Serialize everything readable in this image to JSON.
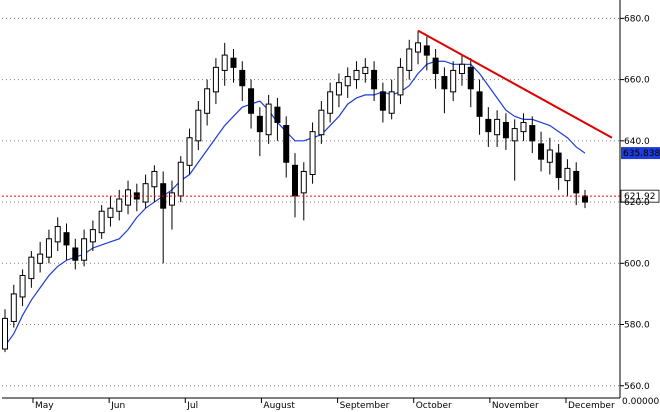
{
  "chart_data": {
    "type": "candlestick",
    "x_axis": {
      "months": [
        "May",
        "Jun",
        "Jul",
        "August",
        "September",
        "October",
        "November",
        "December"
      ]
    },
    "y_axis": {
      "ticks": [
        "560.0",
        "580.0",
        "600.0",
        "620.0",
        "640.0",
        "660.0",
        "680.0"
      ],
      "range": [
        556,
        686
      ],
      "bottom_label": "0.00000"
    },
    "grid": true,
    "price_line": {
      "value": 621.92,
      "label": "621.92",
      "color": "#ff0000",
      "style": "dotted"
    },
    "moving_average": {
      "label": "635.838",
      "color": "#1f3dd6",
      "values": [
        573,
        577,
        583,
        588,
        592,
        596,
        599,
        601,
        602,
        603,
        605,
        606,
        607,
        608,
        611,
        615,
        618,
        620,
        622,
        624,
        627,
        629,
        633,
        637,
        641,
        645,
        648,
        651,
        652,
        653,
        650,
        646,
        643,
        640,
        640,
        641,
        642,
        645,
        648,
        652,
        654,
        655,
        655,
        656,
        655,
        656,
        658,
        662,
        665,
        666,
        666,
        665,
        665,
        665,
        662,
        658,
        654,
        650,
        648,
        647,
        647,
        646,
        645,
        643,
        641,
        638,
        636
      ]
    },
    "trendline": {
      "from_value": 676,
      "to_value": 641,
      "color": "#e00000"
    },
    "candles": [
      [
        572,
        582,
        571,
        585
      ],
      [
        581,
        590,
        579,
        593
      ],
      [
        589,
        596,
        586,
        598
      ],
      [
        595,
        602,
        592,
        604
      ],
      [
        600,
        603,
        597,
        607
      ],
      [
        602,
        608,
        600,
        611
      ],
      [
        607,
        612,
        604,
        615
      ],
      [
        610,
        606,
        601,
        613
      ],
      [
        605,
        601,
        598,
        608
      ],
      [
        601,
        608,
        599,
        611
      ],
      [
        607,
        611,
        604,
        614
      ],
      [
        610,
        617,
        608,
        619
      ],
      [
        615,
        618,
        612,
        622
      ],
      [
        617,
        621,
        614,
        624
      ],
      [
        619,
        624,
        616,
        627
      ],
      [
        623,
        621,
        617,
        626
      ],
      [
        620,
        626,
        618,
        629
      ],
      [
        625,
        630,
        620,
        632
      ],
      [
        626,
        618,
        600,
        630
      ],
      [
        619,
        623,
        611,
        627
      ],
      [
        622,
        633,
        620,
        635
      ],
      [
        632,
        641,
        629,
        644
      ],
      [
        640,
        650,
        637,
        653
      ],
      [
        649,
        657,
        645,
        660
      ],
      [
        656,
        664,
        652,
        667
      ],
      [
        663,
        668,
        658,
        672
      ],
      [
        667,
        664,
        659,
        670
      ],
      [
        663,
        658,
        653,
        666
      ],
      [
        657,
        649,
        644,
        660
      ],
      [
        648,
        643,
        635,
        651
      ],
      [
        642,
        652,
        639,
        655
      ],
      [
        651,
        646,
        640,
        654
      ],
      [
        645,
        633,
        628,
        648
      ],
      [
        632,
        622,
        615,
        636
      ],
      [
        623,
        630,
        614,
        633
      ],
      [
        629,
        643,
        626,
        646
      ],
      [
        642,
        650,
        639,
        653
      ],
      [
        649,
        656,
        646,
        659
      ],
      [
        655,
        659,
        651,
        662
      ],
      [
        658,
        661,
        654,
        664
      ],
      [
        660,
        663,
        657,
        666
      ],
      [
        662,
        664,
        659,
        667
      ],
      [
        663,
        657,
        653,
        666
      ],
      [
        656,
        650,
        646,
        659
      ],
      [
        649,
        656,
        647,
        660
      ],
      [
        655,
        664,
        652,
        667
      ],
      [
        663,
        670,
        660,
        673
      ],
      [
        669,
        672,
        665,
        676
      ],
      [
        671,
        668,
        663,
        674
      ],
      [
        667,
        662,
        657,
        670
      ],
      [
        661,
        657,
        649,
        664
      ],
      [
        656,
        663,
        653,
        666
      ],
      [
        662,
        665,
        658,
        668
      ],
      [
        664,
        657,
        651,
        667
      ],
      [
        656,
        648,
        642,
        660
      ],
      [
        647,
        643,
        638,
        651
      ],
      [
        642,
        647,
        638,
        650
      ],
      [
        646,
        641,
        637,
        649
      ],
      [
        640,
        644,
        627,
        647
      ],
      [
        643,
        646,
        640,
        649
      ],
      [
        645,
        640,
        636,
        648
      ],
      [
        639,
        634,
        630,
        643
      ],
      [
        633,
        637,
        629,
        641
      ],
      [
        636,
        628,
        624,
        639
      ],
      [
        627,
        631,
        622,
        634
      ],
      [
        630,
        623,
        619,
        633
      ],
      [
        622,
        620,
        618,
        624
      ]
    ]
  }
}
